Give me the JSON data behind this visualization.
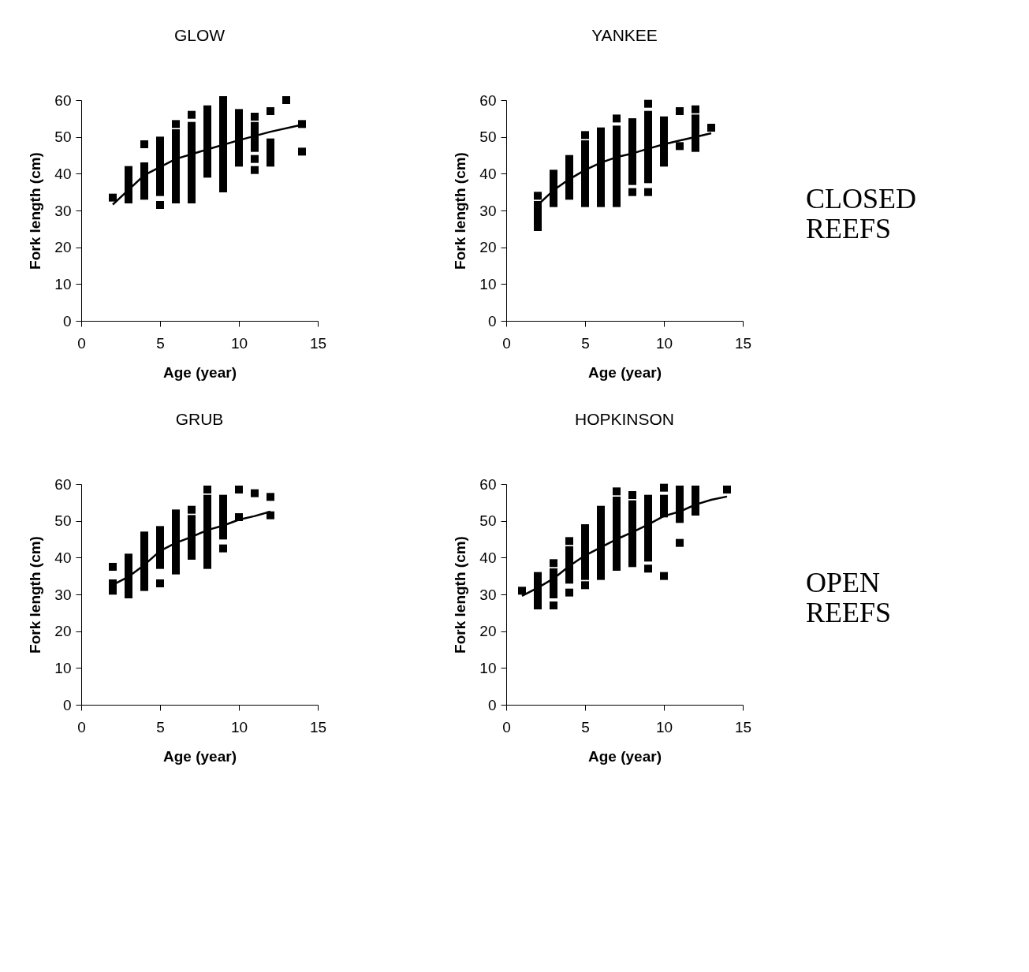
{
  "chart_data": [
    {
      "type": "scatter",
      "title": "GLOW",
      "xlabel": "Age (year)",
      "ylabel": "Fork length (cm)",
      "xlim": [
        0,
        15
      ],
      "ylim": [
        0,
        60
      ],
      "xticks": [
        0,
        5,
        10,
        15
      ],
      "yticks": [
        0,
        10,
        20,
        30,
        40,
        50,
        60
      ],
      "marker": "square",
      "grid": false,
      "series": [
        {
          "type": "scatter",
          "color": "#000000",
          "x": [
            2,
            3,
            3,
            3,
            3,
            3,
            4,
            4,
            4,
            4,
            4,
            4,
            5,
            5,
            5,
            5,
            5,
            5,
            5,
            5,
            5,
            6,
            6,
            6,
            6,
            6,
            6,
            6,
            6,
            6,
            6,
            6,
            7,
            7,
            7,
            7,
            7,
            7,
            7,
            7,
            7,
            7,
            7,
            7,
            8,
            8,
            8,
            8,
            8,
            8,
            8,
            8,
            8,
            8,
            9,
            9,
            9,
            9,
            9,
            9,
            9,
            9,
            9,
            9,
            9,
            9,
            9,
            10,
            10,
            10,
            10,
            10,
            10,
            10,
            10,
            11,
            11,
            11,
            11,
            11,
            11,
            11,
            12,
            12,
            12,
            12,
            12,
            13,
            14,
            14
          ],
          "values": [
            33.5,
            33,
            35,
            37,
            39,
            41,
            34,
            36,
            38,
            40,
            42,
            48,
            31.5,
            35,
            37,
            39,
            41,
            43,
            45,
            47,
            49,
            33,
            35,
            37,
            39,
            41,
            43,
            45,
            47,
            49,
            51,
            53.5,
            33,
            35,
            37,
            39,
            41,
            43,
            45,
            47,
            49,
            51,
            53,
            56,
            40,
            42,
            44,
            46,
            48,
            50,
            52,
            54,
            56,
            57.5,
            36,
            38,
            40,
            42,
            44,
            46,
            48,
            50,
            52,
            54,
            56,
            58,
            60,
            43,
            45,
            47,
            49,
            51,
            53,
            55,
            56.5,
            41,
            44,
            47,
            49,
            51,
            53,
            55.5,
            43,
            45,
            47,
            48.5,
            57,
            60,
            46,
            53.5
          ]
        },
        {
          "type": "line",
          "marker": "none",
          "color": "#000000",
          "x": [
            2,
            4,
            6,
            8,
            10,
            12,
            14
          ],
          "values": [
            31.6,
            39.6,
            44,
            46.6,
            49.1,
            51.4,
            53.3
          ]
        }
      ]
    },
    {
      "type": "scatter",
      "title": "YANKEE",
      "xlabel": "Age (year)",
      "ylabel": "Fork length (cm)",
      "xlim": [
        0,
        15
      ],
      "ylim": [
        0,
        60
      ],
      "xticks": [
        0,
        5,
        10,
        15
      ],
      "yticks": [
        0,
        10,
        20,
        30,
        40,
        50,
        60
      ],
      "marker": "square",
      "grid": false,
      "annotations": [
        "CLOSED REEFS"
      ],
      "series": [
        {
          "type": "scatter",
          "color": "#000000",
          "x": [
            2,
            2,
            2,
            2,
            2,
            3,
            3,
            3,
            3,
            3,
            4,
            4,
            4,
            4,
            4,
            4,
            5,
            5,
            5,
            5,
            5,
            5,
            5,
            5,
            5,
            5,
            6,
            6,
            6,
            6,
            6,
            6,
            6,
            6,
            6,
            6,
            6,
            7,
            7,
            7,
            7,
            7,
            7,
            7,
            7,
            7,
            7,
            7,
            7,
            8,
            8,
            8,
            8,
            8,
            8,
            8,
            8,
            8,
            8,
            9,
            9,
            9,
            9,
            9,
            9,
            9,
            9,
            9,
            9,
            9,
            9,
            10,
            10,
            10,
            10,
            10,
            10,
            10,
            11,
            11,
            12,
            12,
            12,
            12,
            12,
            12,
            13
          ],
          "values": [
            25.5,
            27.5,
            29.5,
            31.5,
            34,
            32,
            34,
            36,
            38,
            40,
            34,
            36,
            38,
            40,
            42,
            44,
            32,
            34,
            36,
            38,
            40,
            42,
            44,
            46,
            48,
            50.5,
            32,
            34,
            36,
            38,
            40,
            42,
            44,
            46,
            48,
            50,
            51.5,
            32,
            34,
            36,
            38,
            40,
            42,
            44,
            46,
            48,
            50,
            52,
            55,
            35,
            38,
            40,
            42,
            44,
            46,
            48,
            50,
            52,
            54,
            35,
            38.5,
            40.5,
            42.5,
            44.5,
            46.5,
            48.5,
            50.5,
            52.5,
            54.5,
            56,
            59,
            43,
            45,
            47,
            49,
            51,
            53,
            54.5,
            47.5,
            57,
            47,
            49,
            51,
            53,
            55,
            57.5,
            52.5
          ]
        },
        {
          "type": "line",
          "marker": "none",
          "color": "#000000",
          "x": [
            2,
            3,
            4,
            5,
            6,
            7,
            8,
            9,
            10,
            11,
            12,
            13
          ],
          "values": [
            31.5,
            35.5,
            38.5,
            41,
            43,
            44.5,
            45.5,
            46.8,
            48,
            49,
            50,
            51
          ]
        }
      ]
    },
    {
      "type": "scatter",
      "title": "GRUB",
      "xlabel": "Age (year)",
      "ylabel": "Fork length (cm)",
      "xlim": [
        0,
        15
      ],
      "ylim": [
        0,
        60
      ],
      "xticks": [
        0,
        5,
        10,
        15
      ],
      "yticks": [
        0,
        10,
        20,
        30,
        40,
        50,
        60
      ],
      "marker": "square",
      "grid": false,
      "series": [
        {
          "type": "scatter",
          "color": "#000000",
          "x": [
            2,
            2,
            2,
            3,
            3,
            3,
            3,
            3,
            3,
            4,
            4,
            4,
            4,
            4,
            4,
            4,
            4,
            5,
            5,
            5,
            5,
            5,
            5,
            5,
            6,
            6,
            6,
            6,
            6,
            6,
            6,
            6,
            6,
            7,
            7,
            7,
            7,
            7,
            7,
            7,
            8,
            8,
            8,
            8,
            8,
            8,
            8,
            8,
            8,
            8,
            8,
            9,
            9,
            9,
            9,
            9,
            9,
            9,
            10,
            10,
            11,
            12,
            12
          ],
          "values": [
            31,
            33,
            37.5,
            30,
            32,
            34,
            36,
            38,
            40,
            32,
            34,
            36,
            38,
            40,
            42,
            44,
            46,
            33,
            38,
            40,
            42,
            44,
            46,
            47.5,
            36.5,
            38.5,
            40.5,
            42.5,
            44.5,
            46.5,
            48.5,
            50.5,
            52,
            40.5,
            42.5,
            44.5,
            46.5,
            48.5,
            50.5,
            53,
            38,
            40,
            42,
            44,
            46,
            48,
            50,
            52,
            54,
            56,
            58.5,
            42.5,
            46,
            48,
            50,
            52,
            54,
            56,
            51,
            58.5,
            57.5,
            51.5,
            56.5
          ]
        },
        {
          "type": "line",
          "marker": "none",
          "color": "#000000",
          "x": [
            2,
            3,
            4,
            5,
            6,
            7,
            8,
            9,
            10,
            11,
            12
          ],
          "values": [
            32.6,
            34.8,
            38,
            41.8,
            44,
            45.6,
            47.5,
            48.7,
            50.3,
            51.3,
            52.5
          ]
        }
      ]
    },
    {
      "type": "scatter",
      "title": "HOPKINSON",
      "xlabel": "Age (year)",
      "ylabel": "Fork length (cm)",
      "xlim": [
        0,
        15
      ],
      "ylim": [
        0,
        60
      ],
      "xticks": [
        0,
        5,
        10,
        15
      ],
      "yticks": [
        0,
        10,
        20,
        30,
        40,
        50,
        60
      ],
      "marker": "square",
      "grid": false,
      "annotations": [
        "OPEN REEFS"
      ],
      "series": [
        {
          "type": "scatter",
          "color": "#000000",
          "x": [
            1,
            2,
            2,
            2,
            2,
            2,
            3,
            3,
            3,
            3,
            3,
            3,
            4,
            4,
            4,
            4,
            4,
            4,
            4,
            5,
            5,
            5,
            5,
            5,
            5,
            5,
            5,
            5,
            6,
            6,
            6,
            6,
            6,
            6,
            6,
            6,
            6,
            6,
            7,
            7,
            7,
            7,
            7,
            7,
            7,
            7,
            7,
            7,
            7,
            8,
            8,
            8,
            8,
            8,
            8,
            8,
            8,
            8,
            8,
            9,
            9,
            9,
            9,
            9,
            9,
            9,
            9,
            9,
            9,
            10,
            10,
            10,
            10,
            10,
            11,
            11,
            11,
            11,
            11,
            11,
            12,
            12,
            12,
            12,
            14
          ],
          "values": [
            31,
            27,
            29,
            31,
            33,
            35,
            27,
            30,
            32,
            34,
            36,
            38.5,
            30.5,
            34,
            36,
            38,
            40,
            42,
            44.5,
            32.5,
            35,
            37,
            39,
            41,
            43,
            45,
            47,
            48,
            35,
            37,
            39,
            41,
            43,
            45,
            47,
            49,
            51,
            53,
            37.5,
            39.5,
            41.5,
            43.5,
            45.5,
            47.5,
            49.5,
            51.5,
            53.5,
            55.5,
            58,
            38.5,
            40.5,
            42.5,
            44.5,
            46.5,
            48.5,
            50.5,
            52.5,
            54.5,
            57,
            37,
            40,
            42,
            44,
            46,
            48,
            50,
            52,
            54,
            56,
            35,
            52,
            54,
            56,
            59,
            44,
            50.5,
            52.5,
            54.5,
            56.5,
            58.5,
            52.5,
            54.5,
            56.5,
            58.5,
            58.5
          ]
        },
        {
          "type": "line",
          "marker": "none",
          "color": "#000000",
          "x": [
            1,
            2,
            3,
            4,
            5,
            6,
            7,
            8,
            9,
            10,
            11,
            12,
            13,
            14
          ],
          "values": [
            29.6,
            31.8,
            34.3,
            37.7,
            40.6,
            42.8,
            45,
            46.9,
            49,
            51.3,
            52.5,
            54.4,
            55.7,
            56.6
          ]
        }
      ]
    }
  ]
}
